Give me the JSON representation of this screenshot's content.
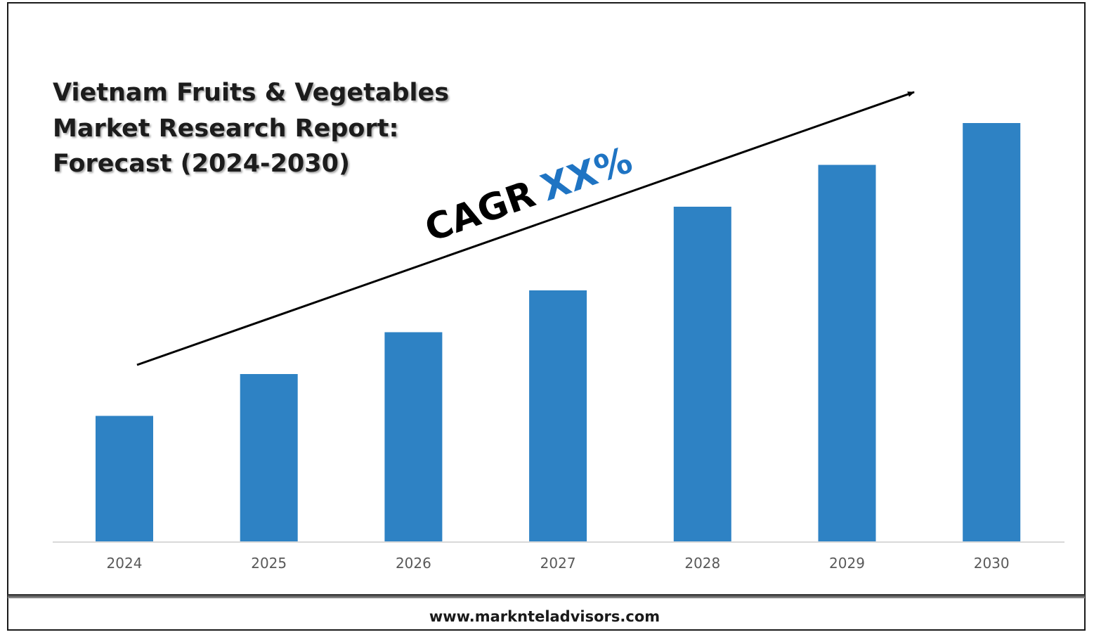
{
  "chart_data": {
    "type": "bar",
    "title": "Vietnam Fruits & Vegetables Market Research Report: Forecast (2024-2030)",
    "title_lines": [
      "Vietnam Fruits & Vegetables",
      "Market Research Report:",
      "Forecast (2024-2030)"
    ],
    "categories": [
      "2024",
      "2025",
      "2026",
      "2027",
      "2028",
      "2029",
      "2030"
    ],
    "values": [
      30,
      40,
      50,
      60,
      80,
      90,
      100
    ],
    "xlabel": "",
    "ylabel": "",
    "ylim": [
      0,
      100
    ],
    "grid": false,
    "legend": "none",
    "bar_color": "#2e82c4",
    "annotation": {
      "prefix": "CAGR",
      "value": "XX%",
      "prefix_color": "#000000",
      "value_color": "#1f74c3"
    }
  },
  "footer": {
    "website": "www.marknteladvisors.com"
  }
}
